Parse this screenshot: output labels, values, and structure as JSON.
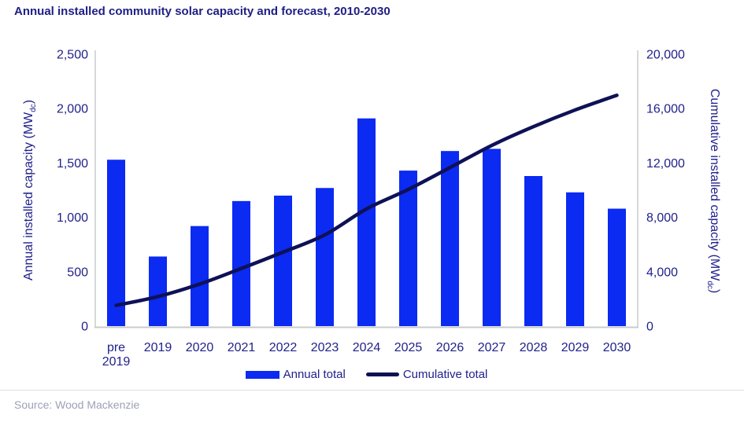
{
  "title": "Annual installed community solar capacity and forecast, 2010-2030",
  "source": "Source: Wood Mackenzie",
  "chart_data": {
    "type": "bar",
    "title": "Annual installed community solar capacity and forecast, 2010-2030",
    "categories": [
      "pre 2019",
      "2019",
      "2020",
      "2021",
      "2022",
      "2023",
      "2024",
      "2025",
      "2026",
      "2027",
      "2028",
      "2029",
      "2030"
    ],
    "series": [
      {
        "name": "Annual total",
        "type": "bar",
        "axis": "left",
        "values": [
          1530,
          640,
          920,
          1150,
          1200,
          1270,
          1910,
          1430,
          1610,
          1630,
          1380,
          1230,
          1080
        ]
      },
      {
        "name": "Cumulative total",
        "type": "line",
        "axis": "right",
        "values": [
          1530,
          2170,
          3090,
          4240,
          5440,
          6710,
          8620,
          10050,
          11660,
          13290,
          14670,
          15900,
          16980
        ]
      }
    ],
    "left_axis": {
      "title_main": "Annual installed capacity (MW",
      "title_sub": "dc",
      "title_close": ")",
      "min": 0,
      "max": 2500,
      "tick_step": 500,
      "tick_values": [
        0,
        500,
        1000,
        1500,
        2000,
        2500
      ],
      "tick_labels": [
        "0",
        "500",
        "1,000",
        "1,500",
        "2,000",
        "2,500"
      ]
    },
    "right_axis": {
      "title_main": "Cumulative installed capacity (MW",
      "title_sub": "dc",
      "title_close": ")",
      "min": 0,
      "max": 20000,
      "tick_step": 4000,
      "tick_values": [
        0,
        4000,
        8000,
        12000,
        16000,
        20000
      ],
      "tick_labels": [
        "0",
        "4,000",
        "8,000",
        "12,000",
        "16,000",
        "20,000"
      ]
    },
    "grid": false,
    "legend_position": "bottom",
    "colors": {
      "bar": "#0b2af2",
      "line": "#0f1157",
      "text": "#21218c",
      "title_text": "#1e1e85",
      "axis_line": "#c9cbcd",
      "divider": "#dcdee2",
      "source_text": "#9ca1b5"
    }
  }
}
